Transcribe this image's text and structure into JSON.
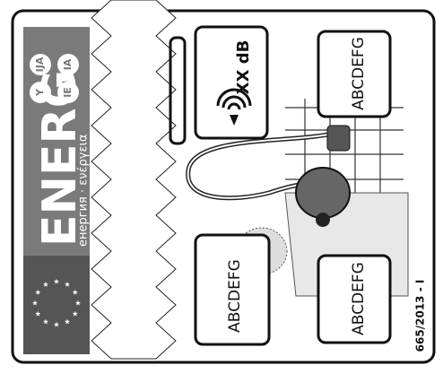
{
  "label": {
    "energy_word": "ENERG",
    "energy_subtitle": "енергия · ενέργεια",
    "language_codes": [
      "Y",
      "IJA",
      "IE",
      "IA"
    ]
  },
  "noise": "XX dB",
  "classes": [
    "ABCDEFG",
    "ABCDEFG",
    "ABCDEFG",
    "ABCDEFG"
  ],
  "regulation": "665/2013 - I"
}
